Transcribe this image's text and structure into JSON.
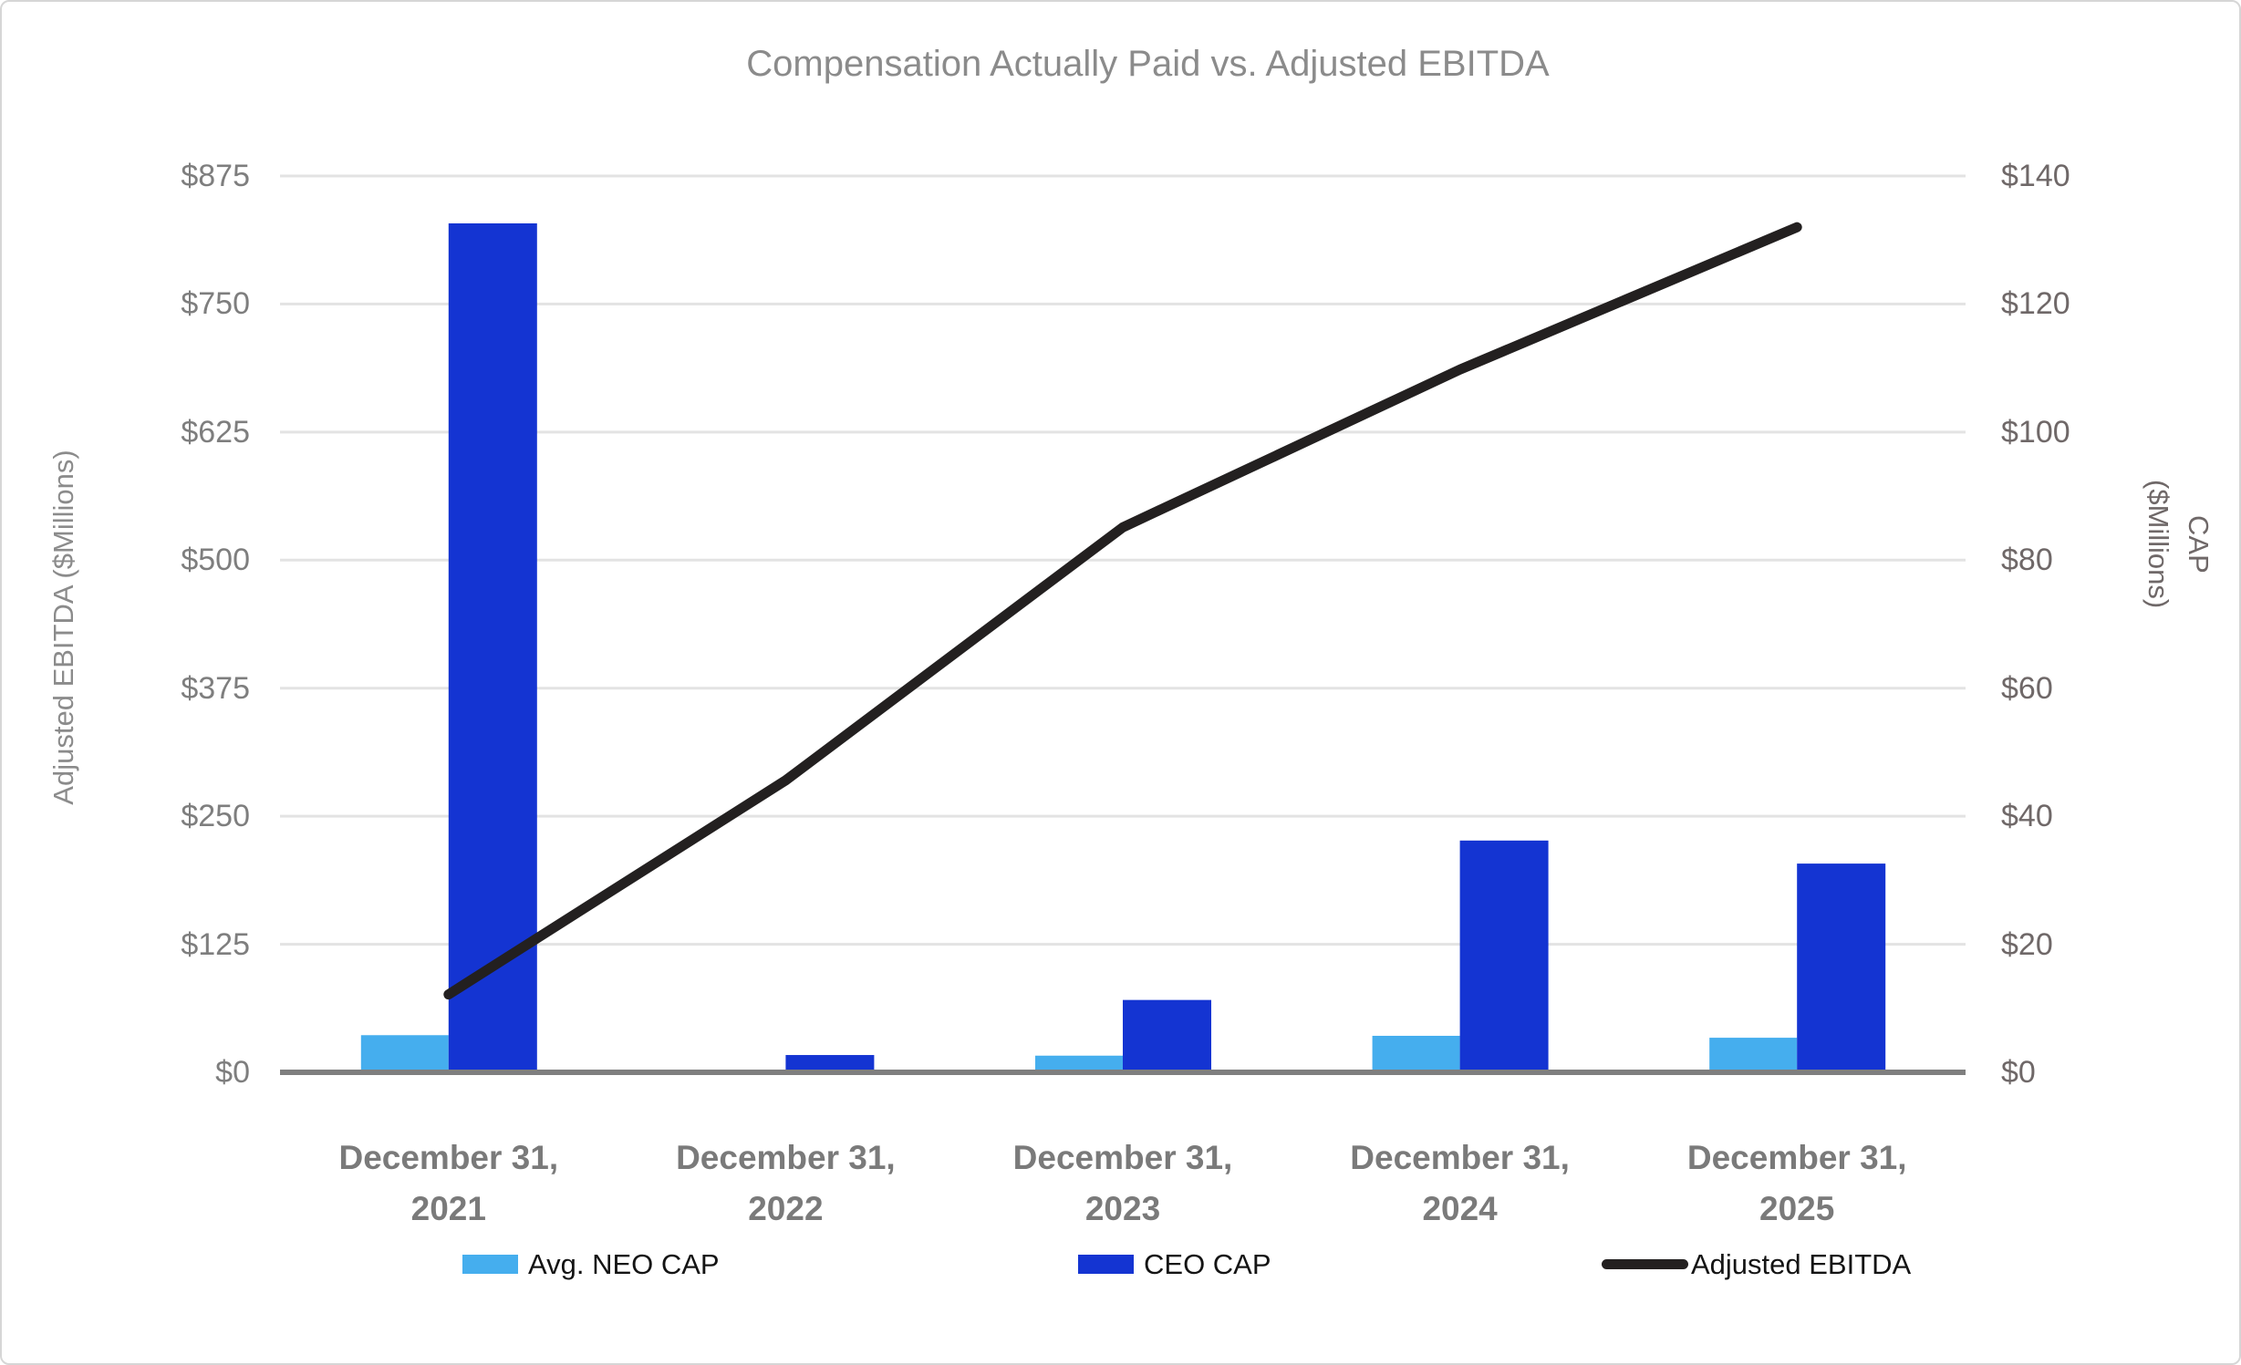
{
  "chart_data": {
    "type": "bar",
    "subtype": "clustered-bars-with-line-combo",
    "title": "Compensation Actually Paid vs. Adjusted EBITDA",
    "categories": [
      "December 31, 2021",
      "December 31, 2022",
      "December 31, 2023",
      "December 31, 2024",
      "December 31, 2025"
    ],
    "series": [
      {
        "name": "Avg. NEO CAP",
        "type": "bar",
        "axis": "right",
        "color": "#45AEEE",
        "values": [
          5.8,
          0.4,
          2.6,
          5.7,
          5.4
        ]
      },
      {
        "name": "CEO CAP",
        "type": "bar",
        "axis": "right",
        "color": "#1434D2",
        "values": [
          132.6,
          2.7,
          11.3,
          36.2,
          32.6
        ]
      },
      {
        "name": "Adjusted EBITDA",
        "type": "line",
        "axis": "left",
        "color": "#232020",
        "values": [
          76,
          285,
          532,
          686,
          825
        ]
      }
    ],
    "left_axis": {
      "title": "Adjusted EBITDA  ($Millions)",
      "ticks": [
        "$875",
        "$750",
        "$625",
        "$500",
        "$375",
        "$250",
        "$125",
        "$0"
      ],
      "tick_values": [
        875,
        750,
        625,
        500,
        375,
        250,
        125,
        0
      ],
      "max": 875,
      "min": 0
    },
    "right_axis": {
      "title_line1": "CAP",
      "title_line2": "($Millions)",
      "ticks": [
        "$140",
        "$120",
        "$100",
        "$80",
        "$60",
        "$40",
        "$20",
        "$0"
      ],
      "tick_values": [
        140,
        120,
        100,
        80,
        60,
        40,
        20,
        0
      ],
      "max": 140,
      "min": 0
    },
    "legend": [
      {
        "label": "Avg. NEO CAP",
        "swatch": "rect",
        "color": "#45AEEE"
      },
      {
        "label": "CEO CAP",
        "swatch": "rect",
        "color": "#1434D2"
      },
      {
        "label": "Adjusted EBITDA",
        "swatch": "line",
        "color": "#232020"
      }
    ],
    "grid": true,
    "legend_position": "bottom",
    "colors": {
      "gridline": "#e3e3e3",
      "baseline": "#7f7f7f",
      "title_text": "#8b8b8b",
      "tick_text": "#7e7e7e"
    }
  }
}
